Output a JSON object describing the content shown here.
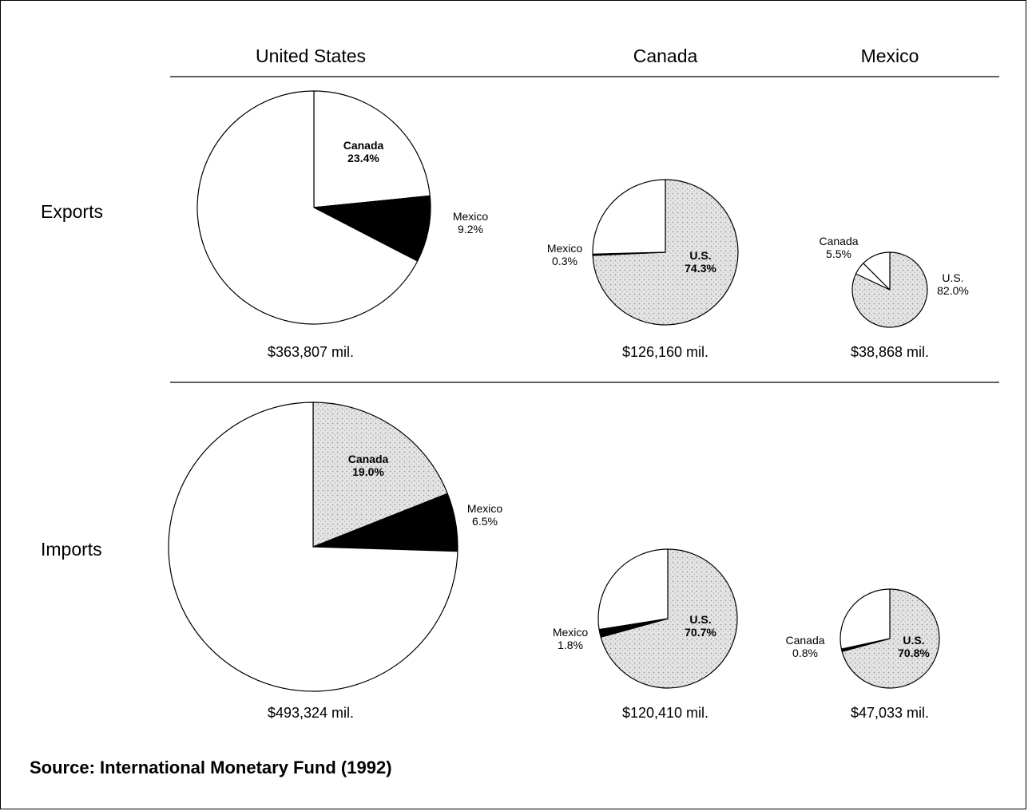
{
  "chart_data": {
    "type": "pie",
    "title": "",
    "columns": [
      "United States",
      "Canada",
      "Mexico"
    ],
    "rows": [
      "Exports",
      "Imports"
    ],
    "colors": {
      "other": "#ffffff",
      "canada": "#ffffff",
      "us": "#dadada",
      "mexico": "#000000",
      "stroke": "#000000"
    },
    "pies": [
      {
        "id": "us-exports",
        "row": "Exports",
        "column": "United States",
        "total": 363807,
        "total_label": "$363,807 mil.",
        "slices": [
          {
            "name": "Canada",
            "value": 23.4,
            "label_name": "Canada",
            "label_value": "23.4%",
            "fill": "canada"
          },
          {
            "name": "Mexico",
            "value": 9.2,
            "label_name": "Mexico",
            "label_value": "9.2%",
            "fill": "mexico"
          },
          {
            "name": "Other",
            "value": 67.4,
            "label_name": "",
            "label_value": "",
            "fill": "other"
          }
        ]
      },
      {
        "id": "canada-exports",
        "row": "Exports",
        "column": "Canada",
        "total": 126160,
        "total_label": "$126,160 mil.",
        "slices": [
          {
            "name": "U.S.",
            "value": 74.3,
            "label_name": "U.S.",
            "label_value": "74.3%",
            "fill": "us"
          },
          {
            "name": "Mexico",
            "value": 0.3,
            "label_name": "Mexico",
            "label_value": "0.3%",
            "fill": "mexico"
          },
          {
            "name": "Other",
            "value": 25.4,
            "label_name": "",
            "label_value": "",
            "fill": "other"
          }
        ]
      },
      {
        "id": "mexico-exports",
        "row": "Exports",
        "column": "Mexico",
        "total": 38868,
        "total_label": "$38,868 mil.",
        "slices": [
          {
            "name": "U.S.",
            "value": 82.0,
            "label_name": "U.S.",
            "label_value": "82.0%",
            "fill": "us"
          },
          {
            "name": "Canada",
            "value": 5.5,
            "label_name": "Canada",
            "label_value": "5.5%",
            "fill": "canada"
          },
          {
            "name": "Other",
            "value": 12.5,
            "label_name": "",
            "label_value": "",
            "fill": "other"
          }
        ]
      },
      {
        "id": "us-imports",
        "row": "Imports",
        "column": "United States",
        "total": 493324,
        "total_label": "$493,324 mil.",
        "slices": [
          {
            "name": "Canada",
            "value": 19.0,
            "label_name": "Canada",
            "label_value": "19.0%",
            "fill": "us"
          },
          {
            "name": "Mexico",
            "value": 6.5,
            "label_name": "Mexico",
            "label_value": "6.5%",
            "fill": "mexico"
          },
          {
            "name": "Other",
            "value": 74.5,
            "label_name": "",
            "label_value": "",
            "fill": "other"
          }
        ]
      },
      {
        "id": "canada-imports",
        "row": "Imports",
        "column": "Canada",
        "total": 120410,
        "total_label": "$120,410 mil.",
        "slices": [
          {
            "name": "U.S.",
            "value": 70.7,
            "label_name": "U.S.",
            "label_value": "70.7%",
            "fill": "us"
          },
          {
            "name": "Mexico",
            "value": 1.8,
            "label_name": "Mexico",
            "label_value": "1.8%",
            "fill": "mexico"
          },
          {
            "name": "Other",
            "value": 27.5,
            "label_name": "",
            "label_value": "",
            "fill": "other"
          }
        ]
      },
      {
        "id": "mexico-imports",
        "row": "Imports",
        "column": "Mexico",
        "total": 47033,
        "total_label": "$47,033 mil.",
        "slices": [
          {
            "name": "U.S.",
            "value": 70.8,
            "label_name": "U.S.",
            "label_value": "70.8%",
            "fill": "us"
          },
          {
            "name": "Canada",
            "value": 0.8,
            "label_name": "Canada",
            "label_value": "0.8%",
            "fill": "mexico"
          },
          {
            "name": "Other",
            "value": 28.4,
            "label_name": "",
            "label_value": "",
            "fill": "other"
          }
        ]
      }
    ],
    "source": "Source: International Monetary Fund (1992)"
  }
}
